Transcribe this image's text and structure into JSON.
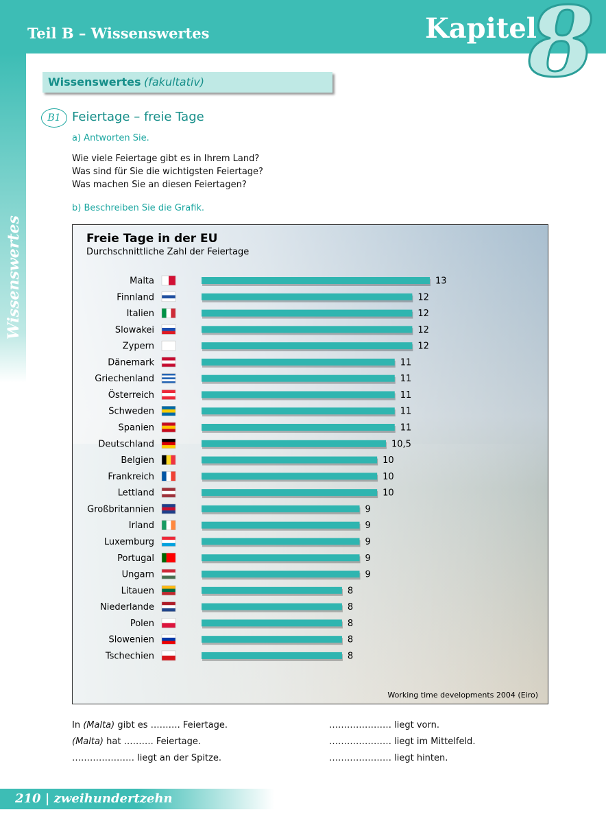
{
  "header": {
    "part": "Teil B – Wissenswertes",
    "chapter": "Kapitel",
    "chapter_number": "8"
  },
  "side_label": "Wissenswertes",
  "section": {
    "title": "Wissenswertes",
    "subtitle": "(fakultativ)"
  },
  "exercise": {
    "badge": "B1",
    "title": "Feiertage – freie Tage",
    "a_label": "a)  Antworten Sie.",
    "questions": [
      "Wie viele Feiertage gibt es in Ihrem Land?",
      "Was sind für Sie die wichtigsten Feiertage?",
      "Was machen Sie an diesen Feiertagen?"
    ],
    "b_label": "b)  Beschreiben Sie die Grafik."
  },
  "chart_data": {
    "type": "bar",
    "orientation": "horizontal",
    "title": "Freie Tage in der EU",
    "subtitle": "Durchschnittliche Zahl der Feiertage",
    "categories": [
      "Malta",
      "Finnland",
      "Italien",
      "Slowakei",
      "Zypern",
      "Dänemark",
      "Griechenland",
      "Österreich",
      "Schweden",
      "Spanien",
      "Deutschland",
      "Belgien",
      "Frankreich",
      "Lettland",
      "Großbritannien",
      "Irland",
      "Luxemburg",
      "Portugal",
      "Ungarn",
      "Litauen",
      "Niederlande",
      "Polen",
      "Slowenien",
      "Tschechien"
    ],
    "values": [
      13,
      12,
      12,
      12,
      12,
      11,
      11,
      11,
      11,
      11,
      10.5,
      10,
      10,
      10,
      9,
      9,
      9,
      9,
      9,
      8,
      8,
      8,
      8,
      8
    ],
    "value_labels": [
      "13",
      "12",
      "12",
      "12",
      "12",
      "11",
      "11",
      "11",
      "11",
      "11",
      "10,5",
      "10",
      "10",
      "10",
      "9",
      "9",
      "9",
      "9",
      "9",
      "8",
      "8",
      "8",
      "8",
      "8"
    ],
    "color": "#2fb5b0",
    "source": "Working time developments 2004 (Eiro)"
  },
  "fill_in": {
    "left": [
      [
        "In ",
        "(Malta)",
        " gibt es ",
        "……….",
        "  Feiertage."
      ],
      [
        "(Malta)",
        " hat ",
        "……….",
        "  Feiertage."
      ],
      [
        "…………………",
        "  liegt an der Spitze."
      ]
    ],
    "right": [
      [
        "…………………",
        "  liegt vorn."
      ],
      [
        "…………………",
        "  liegt im Mittelfeld."
      ],
      [
        "…………………",
        "  liegt hinten."
      ]
    ]
  },
  "footer": {
    "page_number": "210",
    "page_word": "zweihundertzehn"
  }
}
